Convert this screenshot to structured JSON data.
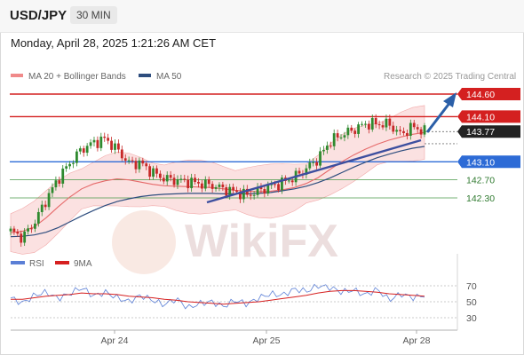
{
  "header": {
    "symbol": "USD/JPY",
    "timeframe": "30 MIN"
  },
  "datetime": "Monday, April 28, 2025 1:21:26 AM CET",
  "legend": {
    "ma20": {
      "label": "MA 20 + Bollinger Bands",
      "color": "#f08a8a"
    },
    "ma50": {
      "label": "MA 50",
      "color": "#2e4d7e"
    },
    "rsi": {
      "label": "RSI",
      "color": "#5b7fd6"
    },
    "ma9": {
      "label": "9MA",
      "color": "#d62020"
    }
  },
  "credit": "Research © 2025 Trading Central",
  "watermark": "WikiFX",
  "colors": {
    "resistance": "#d42020",
    "support": "#2d6bd6",
    "target": "#d9d9d9",
    "current": "#222222",
    "arrow": "#2b5fa8",
    "trendline": "#3d4f9f",
    "bullish": "#2f8a2f",
    "bearish": "#c72828"
  },
  "chart_data": {
    "type": "candlestick",
    "x_labels": [
      "Apr 24",
      "Apr 25",
      "Apr 28"
    ],
    "levels": [
      {
        "price": 144.6,
        "label": "144.60",
        "kind": "resistance"
      },
      {
        "price": 144.1,
        "label": "144.10",
        "kind": "resistance"
      },
      {
        "price": 143.77,
        "label": "143.77",
        "kind": "current"
      },
      {
        "price": 143.1,
        "label": "143.10",
        "kind": "support"
      },
      {
        "price": 142.7,
        "label": "142.70",
        "kind": "target"
      },
      {
        "price": 142.3,
        "label": "142.30",
        "kind": "target"
      }
    ],
    "price_series": [
      141.56,
      141.42,
      141.75,
      142.26,
      142.72,
      143.07,
      143.38,
      143.52,
      143.61,
      143.37,
      143.07,
      143.07,
      142.86,
      142.73,
      142.69,
      142.66,
      142.62,
      142.58,
      142.5,
      142.43,
      142.36,
      142.46,
      142.56,
      142.64,
      142.76,
      142.95,
      143.17,
      143.55,
      143.7,
      143.81,
      143.94,
      143.94,
      143.93,
      143.7,
      143.88,
      143.77
    ],
    "ma20_series": [
      141.53,
      141.56,
      141.66,
      141.86,
      142.1,
      142.32,
      142.5,
      142.61,
      142.68,
      142.72,
      142.7,
      142.65,
      142.6,
      142.57,
      142.56,
      142.55,
      142.54,
      142.53,
      142.5,
      142.47,
      142.45,
      142.44,
      142.45,
      142.48,
      142.53,
      142.62,
      142.75,
      142.93,
      143.1,
      143.25,
      143.38,
      143.49,
      143.58,
      143.65,
      143.71,
      143.75
    ],
    "ma50_series": [
      141.44,
      141.45,
      141.48,
      141.54,
      141.64,
      141.77,
      141.9,
      142.02,
      142.13,
      142.22,
      142.28,
      142.33,
      142.36,
      142.38,
      142.39,
      142.4,
      142.4,
      142.4,
      142.39,
      142.39,
      142.39,
      142.4,
      142.42,
      142.46,
      142.5,
      142.56,
      142.64,
      142.74,
      142.86,
      142.98,
      143.09,
      143.19,
      143.27,
      143.34,
      143.4,
      143.44
    ],
    "rsi": {
      "ticks": [
        "70",
        "50",
        "30"
      ],
      "rsi_series": [
        55,
        48,
        58,
        62,
        54,
        60,
        68,
        57,
        62,
        55,
        50,
        58,
        52,
        46,
        54,
        42,
        48,
        50,
        44,
        52,
        47,
        55,
        60,
        58,
        66,
        63,
        70,
        68,
        62,
        65,
        58,
        66,
        52,
        60,
        55,
        58
      ],
      "ma9_series": [
        53,
        53,
        55,
        57,
        58,
        59,
        61,
        60,
        60,
        59,
        57,
        56,
        55,
        53,
        52,
        50,
        49,
        48,
        47,
        48,
        49,
        50,
        52,
        54,
        56,
        58,
        61,
        63,
        64,
        64,
        63,
        62,
        60,
        59,
        58,
        57
      ]
    }
  }
}
